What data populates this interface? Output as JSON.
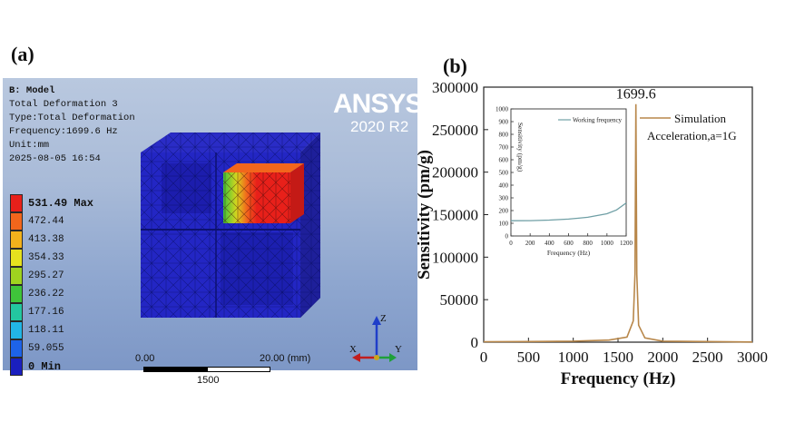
{
  "panel_a": {
    "label": "(a)",
    "header": {
      "model": "B: Model",
      "result": "Total Deformation 3",
      "type": "Type:Total Deformation",
      "frequency": "Frequency:1699.6 Hz",
      "unit": "Unit:mm",
      "date": "2025-08-05 16:54"
    },
    "brand": "ANSYS",
    "version": "2020 R2",
    "legend": [
      {
        "value": "531.49 Max",
        "color": "#e8201a"
      },
      {
        "value": "472.44",
        "color": "#f2661c"
      },
      {
        "value": "413.38",
        "color": "#f3b21c"
      },
      {
        "value": "354.33",
        "color": "#e6e21e"
      },
      {
        "value": "295.27",
        "color": "#9fd31f"
      },
      {
        "value": "236.22",
        "color": "#3fc43a"
      },
      {
        "value": "177.16",
        "color": "#23c7a0"
      },
      {
        "value": "118.11",
        "color": "#22b6e6"
      },
      {
        "value": "59.055",
        "color": "#1d63e8"
      },
      {
        "value": "0 Min",
        "color": "#1a1fbf"
      }
    ],
    "scale": {
      "left": "0.00",
      "right": "20.00 (mm)",
      "mid": "1500"
    },
    "triad": {
      "z": "Z",
      "x": "X",
      "y": "Y"
    }
  },
  "panel_b": {
    "label": "(b)",
    "chart_data": [
      {
        "type": "line",
        "xlabel": "Frequency (Hz)",
        "ylabel": "Sensitivity (pm/g)",
        "xlim": [
          0,
          3000
        ],
        "ylim": [
          0,
          300000
        ],
        "x_ticks": [
          "0",
          "500",
          "1000",
          "1500",
          "2000",
          "2500",
          "3000"
        ],
        "y_ticks": [
          "0",
          "50000",
          "100000",
          "150000",
          "200000",
          "250000",
          "300000"
        ],
        "peak_annotation": "1699.6",
        "legend_position": "top-right",
        "legend": [
          "Simulation",
          "Acceleration,a=1G"
        ],
        "series": [
          {
            "name": "Simulation",
            "color": "#b8874a",
            "x": [
              0,
              500,
              1000,
              1400,
              1600,
              1670,
              1690,
              1699.6,
              1710,
              1730,
              1800,
              2000,
              3000
            ],
            "y": [
              500,
              700,
              1200,
              2500,
              6000,
              25000,
              80000,
              280000,
              80000,
              20000,
              5000,
              1200,
              200
            ]
          }
        ]
      },
      {
        "type": "line",
        "inset": true,
        "xlabel": "Frequency (Hz)",
        "ylabel": "Sensitivity (pm/g)",
        "xlim": [
          0,
          1200
        ],
        "ylim": [
          0,
          1000
        ],
        "x_ticks": [
          "0",
          "200",
          "400",
          "600",
          "800",
          "1000",
          "1200"
        ],
        "y_ticks": [
          "0",
          "100",
          "200",
          "300",
          "400",
          "500",
          "600",
          "700",
          "800",
          "900",
          "1000"
        ],
        "legend": [
          "Working frequency"
        ],
        "series": [
          {
            "name": "Working frequency",
            "color": "#6f9fa5",
            "x": [
              0,
              200,
              400,
              600,
              800,
              1000,
              1100,
              1200
            ],
            "y": [
              120,
              121,
              125,
              133,
              147,
              175,
              205,
              260
            ]
          }
        ]
      }
    ]
  }
}
